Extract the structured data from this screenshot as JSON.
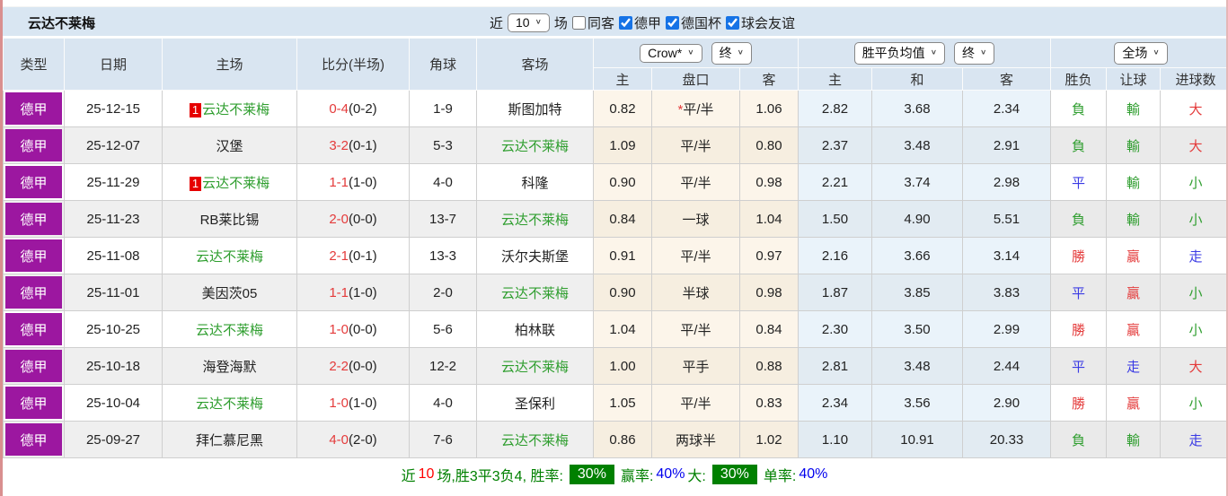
{
  "colors": {
    "league_purple": "#9c17a0",
    "title_bar_blue": "#d9e6f2",
    "crow_area_cream": "#fcf5ea",
    "avg_area_blue": "#eaf3fa",
    "win_red": "#e43b3b",
    "lose_green": "#2f9e2f",
    "draw_blue": "#3b3be4",
    "badge_red": "#e60000",
    "summary_badge_green": "#008000",
    "checkbox_blue": "#1673e6"
  },
  "icons": {
    "chevron_down": "∨"
  },
  "filters": {
    "team_title": "云达不莱梅",
    "recent_label": "近",
    "recent_value": "10",
    "games_label": "场",
    "same_venue_label": "同客",
    "same_venue_checked": false,
    "leagues": [
      {
        "label": "德甲",
        "checked": true
      },
      {
        "label": "德国杯",
        "checked": true
      },
      {
        "label": "球会友谊",
        "checked": true
      }
    ]
  },
  "header": {
    "col_type": "类型",
    "col_date": "日期",
    "col_home": "主场",
    "col_score": "比分(半场)",
    "col_corner": "角球",
    "col_away": "客场",
    "odds_select": "Crow*",
    "odds_time_select": "终",
    "avg_select": "胜平负均值",
    "avg_time_select": "终",
    "fulltime_select": "全场",
    "sub": [
      "主",
      "盘口",
      "客",
      "主",
      "和",
      "客",
      "胜负",
      "让球",
      "进球数"
    ]
  },
  "rows": [
    {
      "league": "德甲",
      "date": "25-12-15",
      "home": {
        "name": "云达不莱梅",
        "green": true,
        "badge": "1"
      },
      "score": {
        "ft": "0-4",
        "ht": "(0-2)"
      },
      "corner": "1-9",
      "away": {
        "name": "斯图加特",
        "green": false
      },
      "asian": {
        "home": "0.82",
        "line": "平/半",
        "star": true,
        "away": "1.06"
      },
      "avg": {
        "home": "2.82",
        "draw": "3.68",
        "away": "2.34"
      },
      "outcome": {
        "result": {
          "t": "負",
          "c": "g"
        },
        "handicap": {
          "t": "輸",
          "c": "g"
        },
        "goals": {
          "t": "大",
          "c": "r"
        }
      }
    },
    {
      "league": "德甲",
      "date": "25-12-07",
      "home": {
        "name": "汉堡",
        "green": false,
        "badge": ""
      },
      "score": {
        "ft": "3-2",
        "ht": "(0-1)"
      },
      "corner": "5-3",
      "away": {
        "name": "云达不莱梅",
        "green": true
      },
      "asian": {
        "home": "1.09",
        "line": "平/半",
        "star": false,
        "away": "0.80"
      },
      "avg": {
        "home": "2.37",
        "draw": "3.48",
        "away": "2.91"
      },
      "outcome": {
        "result": {
          "t": "負",
          "c": "g"
        },
        "handicap": {
          "t": "輸",
          "c": "g"
        },
        "goals": {
          "t": "大",
          "c": "r"
        }
      }
    },
    {
      "league": "德甲",
      "date": "25-11-29",
      "home": {
        "name": "云达不莱梅",
        "green": true,
        "badge": "1"
      },
      "score": {
        "ft": "1-1",
        "ht": "(1-0)"
      },
      "corner": "4-0",
      "away": {
        "name": "科隆",
        "green": false
      },
      "asian": {
        "home": "0.90",
        "line": "平/半",
        "star": false,
        "away": "0.98"
      },
      "avg": {
        "home": "2.21",
        "draw": "3.74",
        "away": "2.98"
      },
      "outcome": {
        "result": {
          "t": "平",
          "c": "b"
        },
        "handicap": {
          "t": "輸",
          "c": "g"
        },
        "goals": {
          "t": "小",
          "c": "g"
        }
      }
    },
    {
      "league": "德甲",
      "date": "25-11-23",
      "home": {
        "name": "RB莱比锡",
        "green": false,
        "badge": ""
      },
      "score": {
        "ft": "2-0",
        "ht": "(0-0)"
      },
      "corner": "13-7",
      "away": {
        "name": "云达不莱梅",
        "green": true
      },
      "asian": {
        "home": "0.84",
        "line": "一球",
        "star": false,
        "away": "1.04"
      },
      "avg": {
        "home": "1.50",
        "draw": "4.90",
        "away": "5.51"
      },
      "outcome": {
        "result": {
          "t": "負",
          "c": "g"
        },
        "handicap": {
          "t": "輸",
          "c": "g"
        },
        "goals": {
          "t": "小",
          "c": "g"
        }
      }
    },
    {
      "league": "德甲",
      "date": "25-11-08",
      "home": {
        "name": "云达不莱梅",
        "green": true,
        "badge": ""
      },
      "score": {
        "ft": "2-1",
        "ht": "(0-1)"
      },
      "corner": "13-3",
      "away": {
        "name": "沃尔夫斯堡",
        "green": false
      },
      "asian": {
        "home": "0.91",
        "line": "平/半",
        "star": false,
        "away": "0.97"
      },
      "avg": {
        "home": "2.16",
        "draw": "3.66",
        "away": "3.14"
      },
      "outcome": {
        "result": {
          "t": "勝",
          "c": "r"
        },
        "handicap": {
          "t": "贏",
          "c": "r"
        },
        "goals": {
          "t": "走",
          "c": "b"
        }
      }
    },
    {
      "league": "德甲",
      "date": "25-11-01",
      "home": {
        "name": "美因茨05",
        "green": false,
        "badge": ""
      },
      "score": {
        "ft": "1-1",
        "ht": "(1-0)"
      },
      "corner": "2-0",
      "away": {
        "name": "云达不莱梅",
        "green": true
      },
      "asian": {
        "home": "0.90",
        "line": "半球",
        "star": false,
        "away": "0.98"
      },
      "avg": {
        "home": "1.87",
        "draw": "3.85",
        "away": "3.83"
      },
      "outcome": {
        "result": {
          "t": "平",
          "c": "b"
        },
        "handicap": {
          "t": "贏",
          "c": "r"
        },
        "goals": {
          "t": "小",
          "c": "g"
        }
      }
    },
    {
      "league": "德甲",
      "date": "25-10-25",
      "home": {
        "name": "云达不莱梅",
        "green": true,
        "badge": ""
      },
      "score": {
        "ft": "1-0",
        "ht": "(0-0)"
      },
      "corner": "5-6",
      "away": {
        "name": "柏林联",
        "green": false
      },
      "asian": {
        "home": "1.04",
        "line": "平/半",
        "star": false,
        "away": "0.84"
      },
      "avg": {
        "home": "2.30",
        "draw": "3.50",
        "away": "2.99"
      },
      "outcome": {
        "result": {
          "t": "勝",
          "c": "r"
        },
        "handicap": {
          "t": "贏",
          "c": "r"
        },
        "goals": {
          "t": "小",
          "c": "g"
        }
      }
    },
    {
      "league": "德甲",
      "date": "25-10-18",
      "home": {
        "name": "海登海默",
        "green": false,
        "badge": ""
      },
      "score": {
        "ft": "2-2",
        "ht": "(0-0)"
      },
      "corner": "12-2",
      "away": {
        "name": "云达不莱梅",
        "green": true
      },
      "asian": {
        "home": "1.00",
        "line": "平手",
        "star": false,
        "away": "0.88"
      },
      "avg": {
        "home": "2.81",
        "draw": "3.48",
        "away": "2.44"
      },
      "outcome": {
        "result": {
          "t": "平",
          "c": "b"
        },
        "handicap": {
          "t": "走",
          "c": "b"
        },
        "goals": {
          "t": "大",
          "c": "r"
        }
      }
    },
    {
      "league": "德甲",
      "date": "25-10-04",
      "home": {
        "name": "云达不莱梅",
        "green": true,
        "badge": ""
      },
      "score": {
        "ft": "1-0",
        "ht": "(1-0)"
      },
      "corner": "4-0",
      "away": {
        "name": "圣保利",
        "green": false
      },
      "asian": {
        "home": "1.05",
        "line": "平/半",
        "star": false,
        "away": "0.83"
      },
      "avg": {
        "home": "2.34",
        "draw": "3.56",
        "away": "2.90"
      },
      "outcome": {
        "result": {
          "t": "勝",
          "c": "r"
        },
        "handicap": {
          "t": "贏",
          "c": "r"
        },
        "goals": {
          "t": "小",
          "c": "g"
        }
      }
    },
    {
      "league": "德甲",
      "date": "25-09-27",
      "home": {
        "name": "拜仁慕尼黑",
        "green": false,
        "badge": ""
      },
      "score": {
        "ft": "4-0",
        "ht": "(2-0)"
      },
      "corner": "7-6",
      "away": {
        "name": "云达不莱梅",
        "green": true
      },
      "asian": {
        "home": "0.86",
        "line": "两球半",
        "star": false,
        "away": "1.02"
      },
      "avg": {
        "home": "1.10",
        "draw": "10.91",
        "away": "20.33"
      },
      "outcome": {
        "result": {
          "t": "負",
          "c": "g"
        },
        "handicap": {
          "t": "輸",
          "c": "g"
        },
        "goals": {
          "t": "走",
          "c": "b"
        }
      }
    }
  ],
  "summary": {
    "recent_label": "近",
    "recent_count": "10",
    "record_text": "场,胜3平3负4, 胜率:",
    "win_rate": "30%",
    "win_label": "赢率:",
    "win_value": "40%",
    "big_label": "大:",
    "big_rate": "30%",
    "single_label": "单率:",
    "single_value": "40%"
  }
}
